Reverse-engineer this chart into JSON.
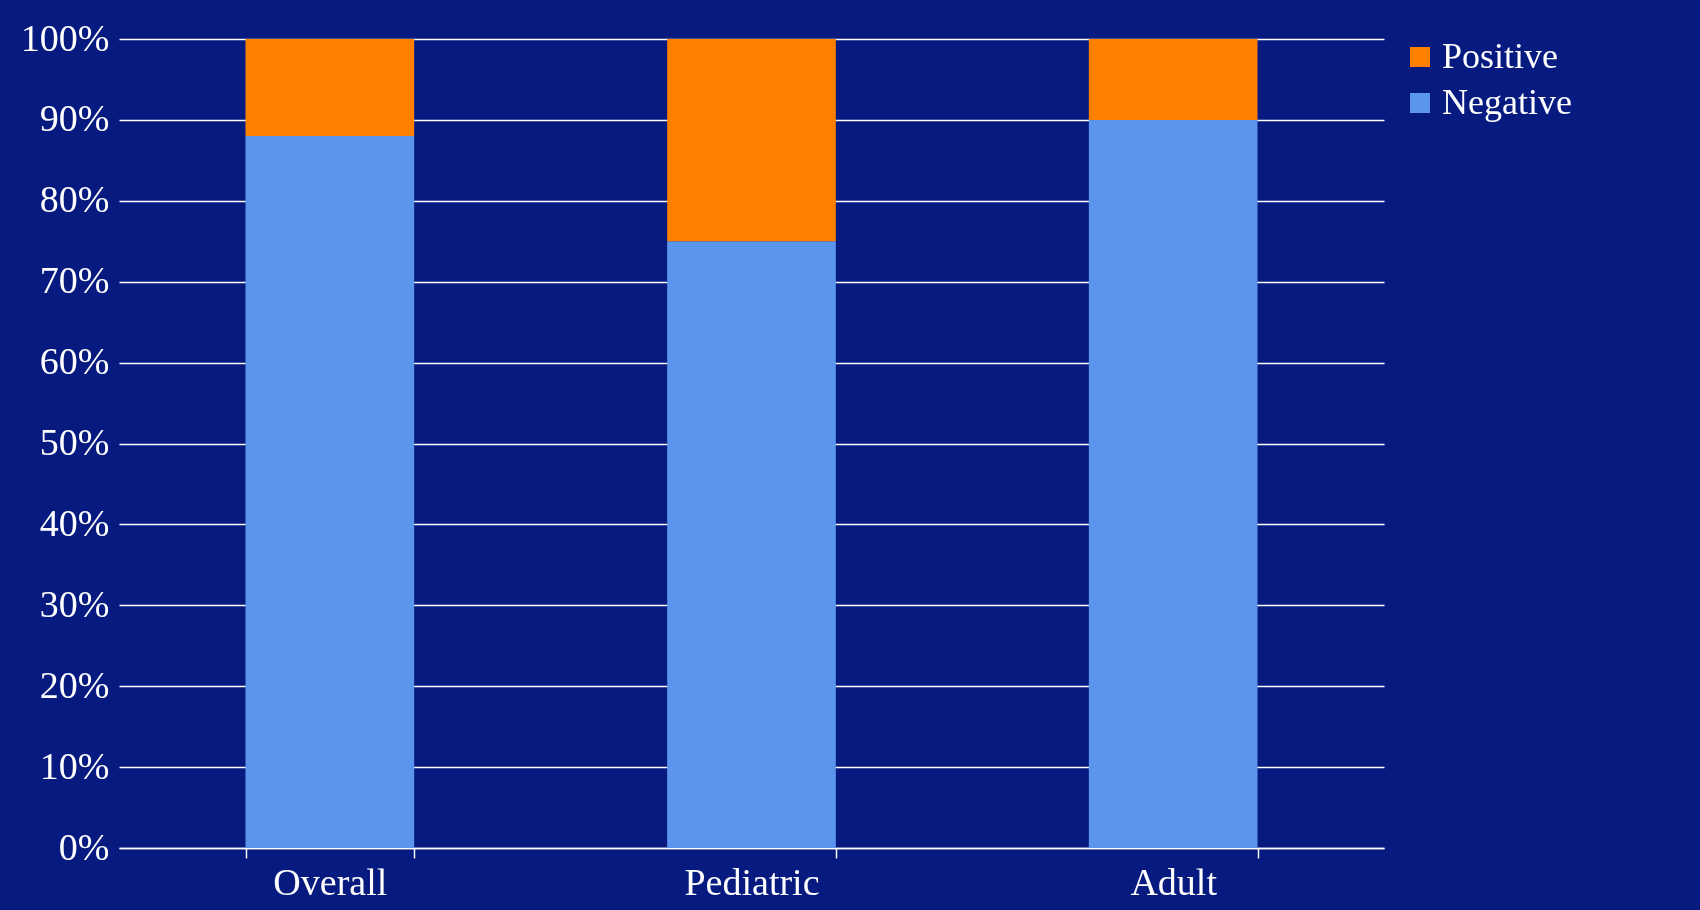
{
  "chart_data": {
    "type": "bar",
    "stacked": true,
    "categories": [
      "Overall",
      "Pediatric",
      "Adult"
    ],
    "series": [
      {
        "name": "Negative",
        "color": "#5b95ee",
        "values": [
          88,
          75,
          90
        ]
      },
      {
        "name": "Positive",
        "color": "#ff7f00",
        "values": [
          12,
          25,
          10
        ]
      }
    ],
    "ylim": [
      0,
      100
    ],
    "yticks": [
      {
        "value": 0,
        "label": "0%"
      },
      {
        "value": 10,
        "label": "10%"
      },
      {
        "value": 20,
        "label": "20%"
      },
      {
        "value": 30,
        "label": "30%"
      },
      {
        "value": 40,
        "label": "40%"
      },
      {
        "value": 50,
        "label": "50%"
      },
      {
        "value": 60,
        "label": "60%"
      },
      {
        "value": 70,
        "label": "70%"
      },
      {
        "value": 80,
        "label": "80%"
      },
      {
        "value": 90,
        "label": "90%"
      },
      {
        "value": 100,
        "label": "100%"
      }
    ],
    "grid": "y",
    "legend": "right"
  }
}
